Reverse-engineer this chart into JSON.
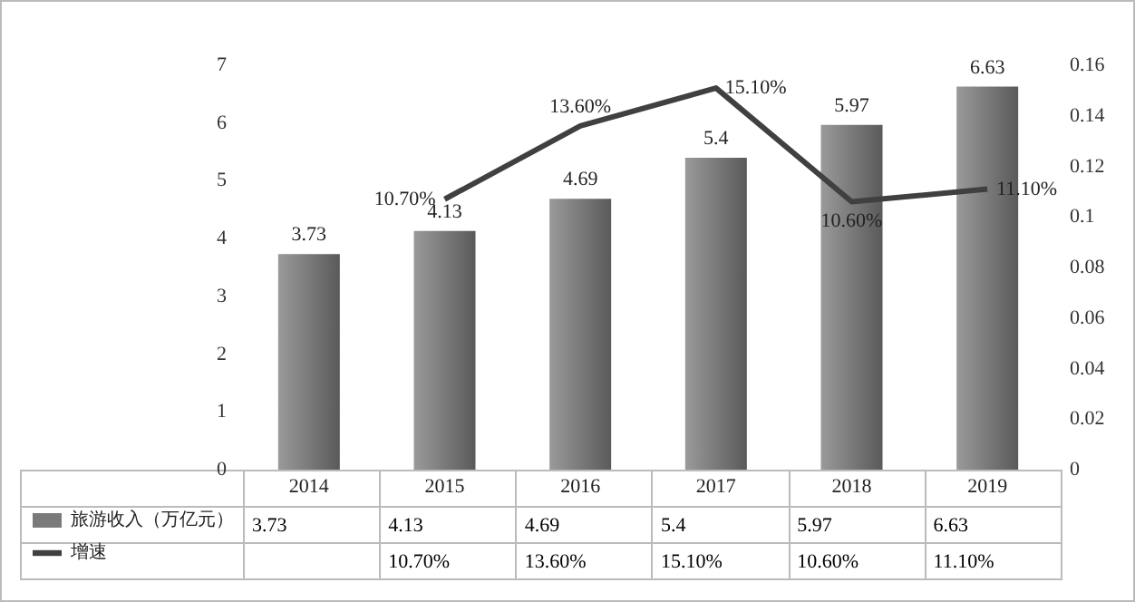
{
  "chart_data": {
    "type": "bar",
    "categories": [
      "2014",
      "2015",
      "2016",
      "2017",
      "2018",
      "2019"
    ],
    "series": [
      {
        "name": "旅游收入（万亿元）",
        "color": "#7a7a7a",
        "values": [
          3.73,
          4.13,
          4.69,
          5.4,
          5.97,
          6.63
        ],
        "value_labels": [
          "3.73",
          "4.13",
          "4.69",
          "5.4",
          "5.97",
          "6.63"
        ]
      },
      {
        "name": "增速",
        "type": "line",
        "axis": "y2",
        "color": "#404040",
        "values": [
          null,
          0.107,
          0.136,
          0.151,
          0.106,
          0.111
        ],
        "value_labels": [
          null,
          "10.70%",
          "13.60%",
          "15.10%",
          "10.60%",
          "11.10%"
        ]
      }
    ],
    "ylim": [
      0,
      7
    ],
    "yticks": [
      0,
      1,
      2,
      3,
      4,
      5,
      6,
      7
    ],
    "y2lim": [
      0,
      0.16
    ],
    "y2ticks": [
      0,
      0.02,
      0.04,
      0.06,
      0.08,
      0.1,
      0.12,
      0.14,
      0.16
    ],
    "legend": "bottom left",
    "grid": false,
    "marker": "none"
  }
}
